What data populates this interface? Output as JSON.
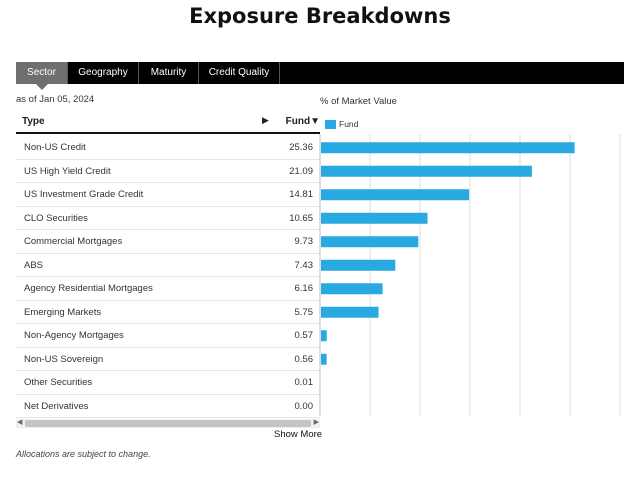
{
  "title": "Exposure Breakdowns",
  "tabs": [
    {
      "label": "Sector",
      "active": true
    },
    {
      "label": "Geography",
      "active": false
    },
    {
      "label": "Maturity",
      "active": false
    },
    {
      "label": "Credit Quality",
      "active": false
    }
  ],
  "as_of": "as of Jan 05, 2024",
  "table": {
    "header_type": "Type",
    "header_fund": "Fund",
    "sort_arrow": "▶",
    "sort_indicator": "▼"
  },
  "show_more": "Show More",
  "footnote": "Allocations are subject to change.",
  "colors": {
    "bar": "#29a9e1",
    "gridline": "#dddddd"
  },
  "chart_data": {
    "type": "bar",
    "orientation": "horizontal",
    "title": "% of Market Value",
    "categories": [
      "Non-US Credit",
      "US High Yield Credit",
      "US Investment Grade Credit",
      "CLO Securities",
      "Commercial Mortgages",
      "ABS",
      "Agency Residential Mortgages",
      "Emerging Markets",
      "Non-Agency Mortgages",
      "Non-US Sovereign",
      "Other Securities",
      "Net Derivatives"
    ],
    "value_labels": [
      "25.36",
      "21.09",
      "14.81",
      "10.65",
      "9.73",
      "7.43",
      "6.16",
      "5.75",
      "0.57",
      "0.56",
      "0.01",
      "0.00"
    ],
    "series": [
      {
        "name": "Fund",
        "values": [
          25.36,
          21.09,
          14.81,
          10.65,
          9.73,
          7.43,
          6.16,
          5.75,
          0.57,
          0.56,
          0.01,
          0.0
        ]
      }
    ],
    "xlim": [
      0,
      30
    ],
    "gridlines": [
      0,
      5,
      10,
      15,
      20,
      25,
      30
    ],
    "grid": true,
    "legend": "top-left"
  }
}
